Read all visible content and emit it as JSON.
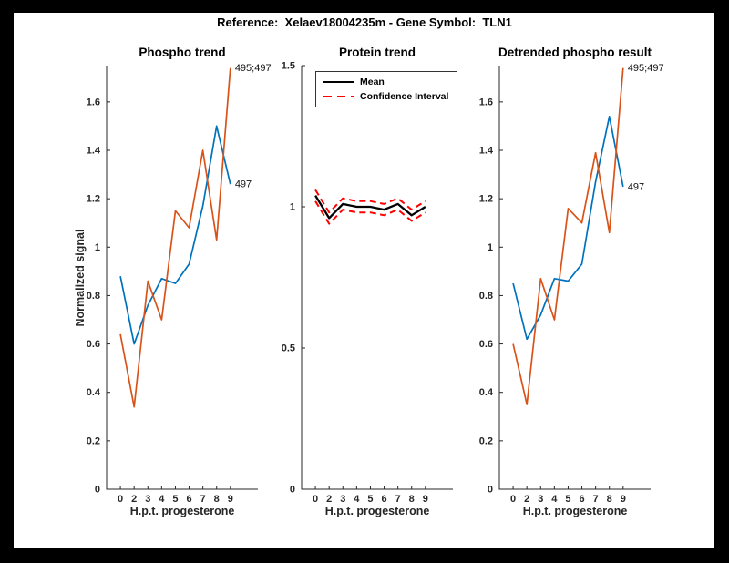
{
  "figure": {
    "title": "Reference:  Xelaev18004235m - Gene Symbol:  TLN1",
    "background_color": "#000000",
    "paper_color": "#ffffff"
  },
  "colors": {
    "blue": "#0072BD",
    "orange": "#D95319",
    "mean": "#000000",
    "confidence": "#FF0000",
    "axis": "#262626",
    "tick_label": "#262626"
  },
  "chart_data": [
    {
      "type": "line",
      "title": "Phospho trend",
      "xlabel": "H.p.t. progesterone",
      "ylabel": "Normalized signal",
      "x_values": [
        0,
        2,
        3,
        4,
        5,
        6,
        7,
        8,
        9
      ],
      "x_tick_labels": [
        "0",
        "2",
        "3",
        "4",
        "5",
        "6",
        "7",
        "8",
        "9"
      ],
      "x_ticks_evenly_spaced": true,
      "ylim": [
        0,
        1.75
      ],
      "yticks": [
        0,
        0.2,
        0.4,
        0.6,
        0.8,
        1,
        1.2,
        1.4,
        1.6
      ],
      "ytick_labels": [
        "0",
        "0.2",
        "0.4",
        "0.6",
        "0.8",
        "1",
        "1.2",
        "1.4",
        "1.6"
      ],
      "grid": false,
      "series": [
        {
          "name": "497",
          "color": "#0072BD",
          "style": "solid",
          "width": 1.7,
          "values": [
            0.88,
            0.6,
            0.76,
            0.87,
            0.85,
            0.93,
            1.17,
            1.5,
            1.26
          ],
          "end_label": "497"
        },
        {
          "name": "495;497",
          "color": "#D95319",
          "style": "solid",
          "width": 1.7,
          "values": [
            0.64,
            0.34,
            0.86,
            0.7,
            1.15,
            1.08,
            1.4,
            1.03,
            1.74
          ],
          "end_label": "495;497"
        }
      ]
    },
    {
      "type": "line",
      "title": "Protein trend",
      "xlabel": "H.p.t. progesterone",
      "ylabel": "",
      "x_values": [
        0,
        2,
        3,
        4,
        5,
        6,
        7,
        8,
        9
      ],
      "x_tick_labels": [
        "0",
        "2",
        "3",
        "4",
        "5",
        "6",
        "7",
        "8",
        "9"
      ],
      "x_ticks_evenly_spaced": true,
      "ylim": [
        0,
        1.5
      ],
      "yticks": [
        0,
        0.5,
        1,
        1.5
      ],
      "ytick_labels": [
        "0",
        "0.5",
        "1",
        "1.5"
      ],
      "grid": false,
      "legend": {
        "position": "top-left-inside",
        "entries": [
          {
            "label": "Mean",
            "color": "#000000",
            "style": "solid"
          },
          {
            "label": "Confidence Interval",
            "color": "#FF0000",
            "style": "dashed"
          }
        ]
      },
      "series": [
        {
          "name": "Mean",
          "color": "#000000",
          "style": "solid",
          "width": 2.3,
          "values": [
            1.04,
            0.96,
            1.01,
            1.0,
            1.0,
            0.99,
            1.01,
            0.97,
            1.0
          ]
        },
        {
          "name": "Confidence Interval upper",
          "color": "#FF0000",
          "style": "dashed",
          "width": 2,
          "values": [
            1.06,
            0.98,
            1.03,
            1.02,
            1.02,
            1.01,
            1.03,
            0.99,
            1.02
          ]
        },
        {
          "name": "Confidence Interval lower",
          "color": "#FF0000",
          "style": "dashed",
          "width": 2,
          "values": [
            1.02,
            0.94,
            0.99,
            0.98,
            0.98,
            0.97,
            0.99,
            0.95,
            0.98
          ]
        }
      ]
    },
    {
      "type": "line",
      "title": "Detrended phospho result",
      "xlabel": "H.p.t. progesterone",
      "ylabel": "",
      "x_values": [
        0,
        2,
        3,
        4,
        5,
        6,
        7,
        8,
        9
      ],
      "x_tick_labels": [
        "0",
        "2",
        "3",
        "4",
        "5",
        "6",
        "7",
        "8",
        "9"
      ],
      "x_ticks_evenly_spaced": true,
      "ylim": [
        0,
        1.75
      ],
      "yticks": [
        0,
        0.2,
        0.4,
        0.6,
        0.8,
        1,
        1.2,
        1.4,
        1.6
      ],
      "ytick_labels": [
        "0",
        "0.2",
        "0.4",
        "0.6",
        "0.8",
        "1",
        "1.2",
        "1.4",
        "1.6"
      ],
      "grid": false,
      "series": [
        {
          "name": "497",
          "color": "#0072BD",
          "style": "solid",
          "width": 1.7,
          "values": [
            0.85,
            0.62,
            0.72,
            0.87,
            0.86,
            0.93,
            1.27,
            1.54,
            1.25
          ],
          "end_label": "497"
        },
        {
          "name": "495;497",
          "color": "#D95319",
          "style": "solid",
          "width": 1.7,
          "values": [
            0.6,
            0.35,
            0.87,
            0.7,
            1.16,
            1.1,
            1.39,
            1.06,
            1.74
          ],
          "end_label": "495;497"
        }
      ]
    }
  ]
}
